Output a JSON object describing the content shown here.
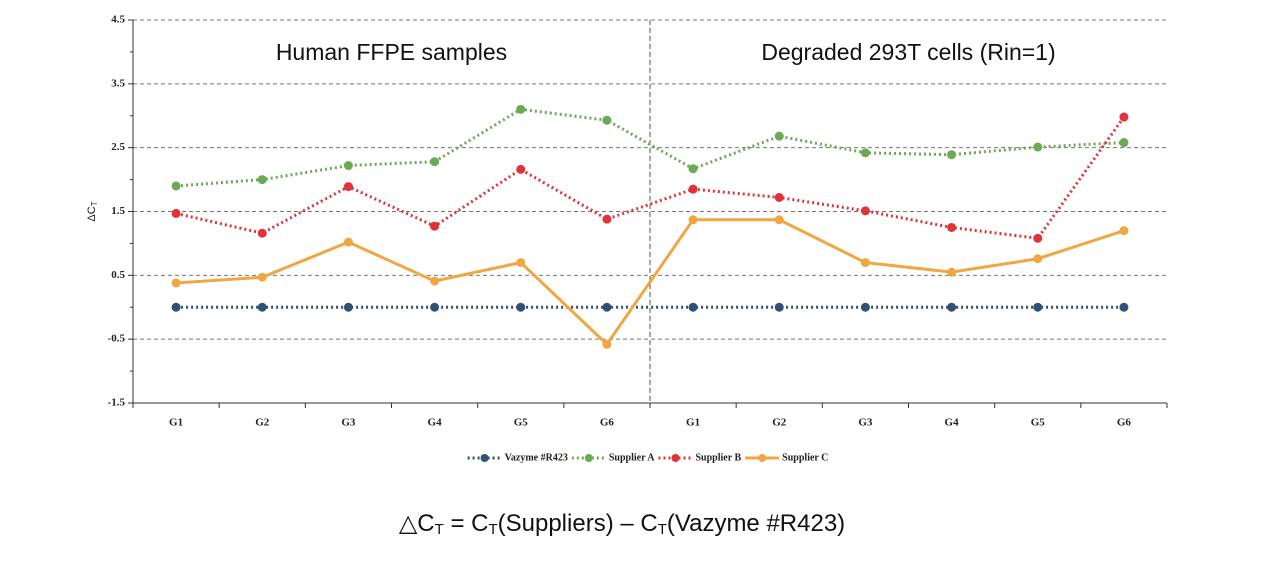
{
  "chart_data": {
    "type": "line",
    "ylabel": {
      "text": "ΔC",
      "sub": "T"
    },
    "categories": [
      "G1",
      "G2",
      "G3",
      "G4",
      "G5",
      "G6",
      "G1",
      "G2",
      "G3",
      "G4",
      "G5",
      "G6"
    ],
    "groups": [
      {
        "label": "Human FFPE samples",
        "span": 6
      },
      {
        "label": "Degraded 293T cells (Rin=1)",
        "span": 6
      }
    ],
    "series": [
      {
        "name": "Vazyme #R423",
        "color": "#2e5275",
        "dash": "dotted",
        "values": [
          0,
          0,
          0,
          0,
          0,
          0,
          0,
          0,
          0,
          0,
          0,
          0
        ]
      },
      {
        "name": "Supplier A",
        "color": "#6aaa55",
        "dash": "dotted",
        "values": [
          1.9,
          2.0,
          2.22,
          2.28,
          3.1,
          2.93,
          2.17,
          2.68,
          2.42,
          2.39,
          2.51,
          2.58
        ]
      },
      {
        "name": "Supplier B",
        "color": "#e03238",
        "dash": "dotted",
        "values": [
          1.47,
          1.16,
          1.89,
          1.27,
          2.16,
          1.38,
          1.85,
          1.72,
          1.51,
          1.25,
          1.08,
          2.98
        ]
      },
      {
        "name": "Supplier C",
        "color": "#f0a742",
        "dash": "solid",
        "values": [
          0.38,
          0.47,
          1.02,
          0.41,
          0.7,
          -0.58,
          1.37,
          1.37,
          0.7,
          0.55,
          0.76,
          1.2
        ]
      }
    ],
    "ylim": [
      -1.5,
      4.5
    ],
    "yticks": [
      -1.5,
      -0.5,
      0.5,
      1.5,
      2.5,
      3.5,
      4.5
    ],
    "minor_yticks": [
      -1,
      0,
      1,
      2,
      3,
      4
    ],
    "grid": true,
    "legend": "bottom",
    "formula": [
      {
        "text": "△C",
        "sub": "T"
      },
      {
        "text": " = C",
        "sub": "T"
      },
      {
        "text": "(Suppliers) – C",
        "sub": "T"
      },
      {
        "text": "(Vazyme #R423)"
      }
    ]
  }
}
